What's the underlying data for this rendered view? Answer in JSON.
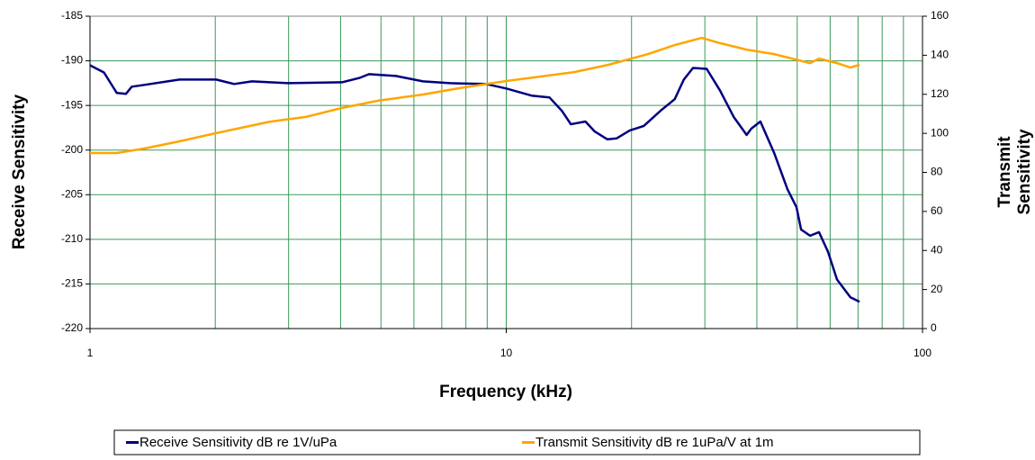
{
  "chart_data": {
    "type": "line",
    "xlabel": "Frequency (kHz)",
    "ylabel": "Receive Sensitivity",
    "y2label": [
      "Transmit",
      "Sensitivity"
    ],
    "xscale": "log",
    "xlim": [
      1,
      100
    ],
    "xticks": [
      1,
      10,
      100
    ],
    "xgrid": [
      2,
      3,
      4,
      5,
      6,
      7,
      8,
      9,
      20,
      30,
      40,
      50,
      60,
      70,
      80,
      90
    ],
    "ylim": [
      -220,
      -185
    ],
    "yticks": [
      -220,
      -215,
      -210,
      -205,
      -200,
      -195,
      -190,
      -185
    ],
    "y2lim": [
      0,
      160
    ],
    "y2ticks": [
      0,
      20,
      40,
      60,
      80,
      100,
      120,
      140,
      160
    ],
    "grid": true,
    "grid_color": "#3a9a5a",
    "legend": "bottom",
    "series": [
      {
        "name": "Receive Sensitivity dB re 1V/uPa",
        "color": "#000080",
        "x": [
          1,
          1.08,
          1.16,
          1.22,
          1.26,
          1.35,
          1.64,
          2.01,
          2.22,
          2.45,
          2.99,
          4.03,
          4.45,
          4.68,
          5.43,
          6.31,
          7.33,
          8.94,
          10,
          11.5,
          12.7,
          13.6,
          14.3,
          15.5,
          16.3,
          17.5,
          18.4,
          19.8,
          21.4,
          23.6,
          25.4,
          26.7,
          28.1,
          30.3,
          32.6,
          35.2,
          37.8,
          38.8,
          40.8,
          44.0,
          47.4,
          49.8,
          51.1,
          53.7,
          56.4,
          59.3,
          62.3,
          67.1,
          70.6
        ],
        "values": [
          -190.5,
          -191.3,
          -193.6,
          -193.7,
          -192.9,
          -192.7,
          -192.1,
          -192.1,
          -192.6,
          -192.3,
          -192.5,
          -192.4,
          -191.9,
          -191.5,
          -191.7,
          -192.3,
          -192.5,
          -192.6,
          -193.1,
          -193.9,
          -194.1,
          -195.6,
          -197.1,
          -196.8,
          -197.9,
          -198.8,
          -198.7,
          -197.8,
          -197.3,
          -195.5,
          -194.3,
          -192.1,
          -190.8,
          -190.9,
          -193.3,
          -196.3,
          -198.3,
          -197.6,
          -196.8,
          -200.3,
          -204.4,
          -206.4,
          -208.9,
          -209.6,
          -209.2,
          -211.4,
          -214.5,
          -216.5,
          -217.0
        ]
      },
      {
        "name": "Transmit Sensitivity dB re 1uPa/V at 1m",
        "color": "#ffa500",
        "axis": "y2",
        "x": [
          1,
          1.16,
          1.35,
          1.64,
          2.01,
          2.71,
          3.3,
          4.03,
          4.92,
          6.31,
          7.7,
          10,
          12.1,
          14.6,
          17.6,
          21.9,
          25.4,
          29.5,
          32.6,
          37.8,
          44,
          48.6,
          53.7,
          56.4,
          62.3,
          67.1,
          70.6
        ],
        "values": [
          89.9,
          89.9,
          92.2,
          95.9,
          100.1,
          106,
          108.4,
          113,
          116.7,
          119.9,
          123.1,
          126.8,
          129.1,
          131.4,
          135.1,
          140.6,
          145.2,
          148.9,
          146.2,
          142.9,
          140.6,
          138.3,
          136,
          138.3,
          136,
          133.7,
          135.1
        ]
      }
    ]
  }
}
